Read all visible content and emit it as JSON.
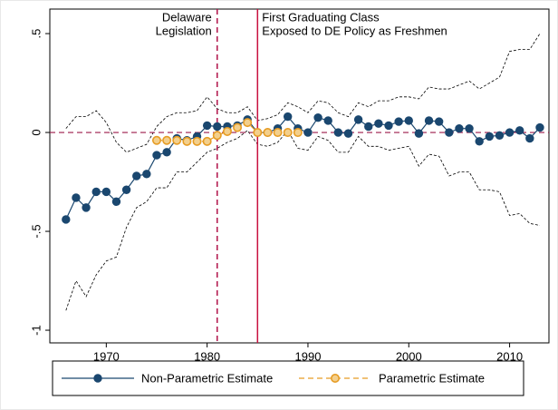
{
  "chart_data": {
    "type": "line",
    "x": [
      1966,
      1967,
      1968,
      1969,
      1970,
      1971,
      1972,
      1973,
      1974,
      1975,
      1976,
      1977,
      1978,
      1979,
      1980,
      1981,
      1982,
      1983,
      1984,
      1985,
      1986,
      1987,
      1988,
      1989,
      1990,
      1991,
      1992,
      1993,
      1994,
      1995,
      1996,
      1997,
      1998,
      1999,
      2000,
      2001,
      2002,
      2003,
      2004,
      2005,
      2006,
      2007,
      2008,
      2009,
      2010,
      2011,
      2012,
      2013
    ],
    "series": [
      {
        "name": "Non-Parametric Estimate",
        "color": "#1a476f",
        "marker": "filled",
        "values": [
          -0.44,
          -0.33,
          -0.38,
          -0.3,
          -0.3,
          -0.35,
          -0.29,
          -0.22,
          -0.21,
          -0.115,
          -0.1,
          -0.03,
          -0.04,
          -0.02,
          0.035,
          0.03,
          0.03,
          0.035,
          0.065,
          0.0,
          0.0,
          0.02,
          0.08,
          0.02,
          0.0,
          0.075,
          0.06,
          0.0,
          -0.005,
          0.065,
          0.03,
          0.045,
          0.035,
          0.055,
          0.06,
          -0.005,
          0.06,
          0.055,
          0.0,
          0.02,
          0.02,
          -0.045,
          -0.02,
          -0.015,
          0.0,
          0.01,
          -0.03,
          0.025
        ]
      },
      {
        "name": "Parametric Estimate",
        "color": "#e69c24",
        "marker": "hollow",
        "dashed": true,
        "values": [
          null,
          null,
          null,
          null,
          null,
          null,
          null,
          null,
          null,
          -0.04,
          -0.04,
          -0.04,
          -0.045,
          -0.045,
          -0.045,
          -0.015,
          0.005,
          0.025,
          0.05,
          0.0,
          0.0,
          0.0,
          0.0,
          0.0,
          null,
          null,
          null,
          null,
          null,
          null,
          null,
          null,
          null,
          null,
          null,
          null,
          null,
          null,
          null,
          null,
          null,
          null,
          null,
          null,
          null,
          null,
          null,
          null
        ]
      },
      {
        "color": "#000000",
        "dotted": true,
        "values": [
          0.02,
          0.08,
          0.08,
          0.11,
          0.05,
          -0.05,
          -0.1,
          -0.08,
          -0.06,
          0.03,
          0.08,
          0.1,
          0.1,
          0.11,
          0.18,
          0.12,
          0.1,
          0.1,
          0.13,
          0.06,
          0.07,
          0.09,
          0.15,
          0.13,
          0.1,
          0.16,
          0.15,
          0.1,
          0.08,
          0.15,
          0.13,
          0.16,
          0.16,
          0.18,
          0.18,
          0.17,
          0.23,
          0.22,
          0.22,
          0.24,
          0.26,
          0.22,
          0.25,
          0.28,
          0.41,
          0.42,
          0.42,
          0.5
        ]
      },
      {
        "color": "#000000",
        "dotted": true,
        "values": [
          -0.9,
          -0.75,
          -0.83,
          -0.72,
          -0.65,
          -0.63,
          -0.48,
          -0.38,
          -0.35,
          -0.28,
          -0.28,
          -0.2,
          -0.2,
          -0.15,
          -0.1,
          -0.08,
          -0.05,
          -0.03,
          0.01,
          -0.06,
          -0.07,
          -0.05,
          0.01,
          -0.08,
          -0.09,
          -0.02,
          -0.04,
          -0.1,
          -0.1,
          -0.02,
          -0.07,
          -0.07,
          -0.09,
          -0.08,
          -0.07,
          -0.17,
          -0.11,
          -0.12,
          -0.22,
          -0.2,
          -0.2,
          -0.29,
          -0.29,
          -0.3,
          -0.42,
          -0.41,
          -0.46,
          -0.47
        ]
      }
    ],
    "xlim": [
      1964.4,
      2013.9
    ],
    "ylim": [
      -1.064,
      0.624
    ],
    "xticks": [
      1970,
      1980,
      1990,
      2000,
      2010
    ],
    "yticks": [
      {
        "value": 0.5,
        "label": ".5"
      },
      0,
      {
        "value": -0.5,
        "label": "-.5"
      },
      -1
    ],
    "hline": {
      "y": 0,
      "color": "#9c1a4a"
    },
    "vlines": [
      {
        "x": 1981,
        "color": "#b0124a",
        "dashed": true,
        "annotation": [
          "Delaware",
          "Legislation"
        ]
      },
      {
        "x": 1985,
        "color": "#c8103e",
        "dashed": false,
        "annotation": [
          "First Graduating Class",
          "Exposed to DE Policy as Freshmen"
        ]
      }
    ]
  }
}
